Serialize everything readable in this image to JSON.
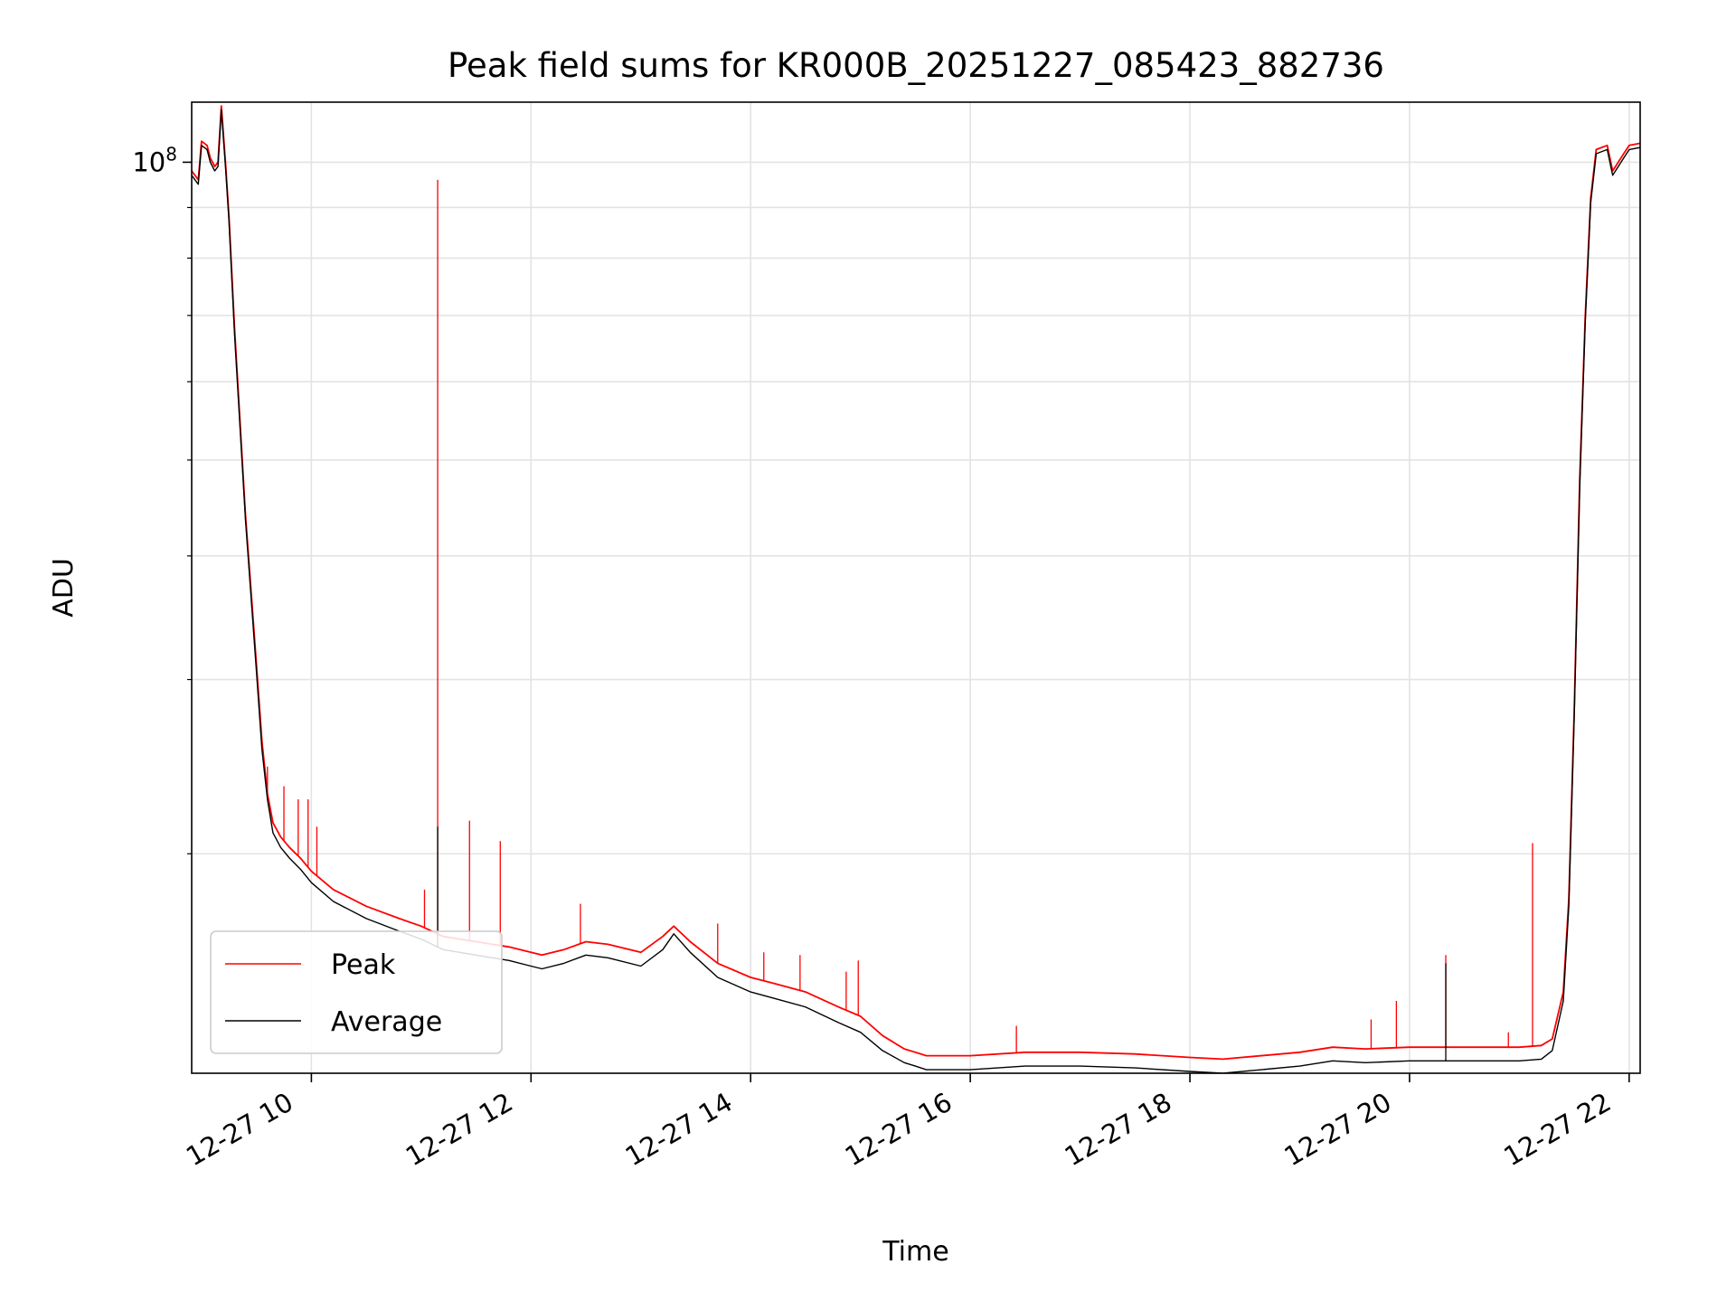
{
  "chart_data": {
    "type": "line",
    "title": "Peak field sums for KR000B_20251227_085423_882736",
    "xlabel": "Time",
    "ylabel": "ADU",
    "yscale": "log",
    "ylim": [
      12000000,
      115000000
    ],
    "xlim": [
      8.91,
      22.1
    ],
    "x_unit": "hours on 2025-12-27",
    "grid": true,
    "legend_position": "lower-left",
    "x_ticks": [
      {
        "value": 10,
        "label": "12-27 10"
      },
      {
        "value": 12,
        "label": "12-27 12"
      },
      {
        "value": 14,
        "label": "12-27 14"
      },
      {
        "value": 16,
        "label": "12-27 16"
      },
      {
        "value": 18,
        "label": "12-27 18"
      },
      {
        "value": 20,
        "label": "12-27 20"
      },
      {
        "value": 22,
        "label": "12-27 22"
      }
    ],
    "y_major_ticks": [
      {
        "value": 100000000,
        "base": "10",
        "exponent": "8"
      }
    ],
    "y_minor_ticks": [
      20000000,
      30000000,
      40000000,
      50000000,
      60000000,
      70000000,
      80000000,
      90000000
    ],
    "series": [
      {
        "name": "Peak",
        "color": "#ff0000",
        "x": [
          8.91,
          8.97,
          9.0,
          9.05,
          9.08,
          9.12,
          9.15,
          9.18,
          9.22,
          9.25,
          9.3,
          9.4,
          9.5,
          9.55,
          9.6,
          9.65,
          9.72,
          9.8,
          9.9,
          10.0,
          10.2,
          10.5,
          10.8,
          11.0,
          11.2,
          11.5,
          11.8,
          12.0,
          12.1,
          12.3,
          12.5,
          12.7,
          13.0,
          13.2,
          13.3,
          13.45,
          13.7,
          14.0,
          14.2,
          14.5,
          14.8,
          15.0,
          15.2,
          15.4,
          15.5,
          15.6,
          16.0,
          16.5,
          17.0,
          17.5,
          18.0,
          18.3,
          19.0,
          19.3,
          19.6,
          20.0,
          20.5,
          21.0,
          21.2,
          21.3,
          21.4,
          21.45,
          21.5,
          21.55,
          21.6,
          21.65,
          21.7,
          21.8,
          21.85,
          21.95,
          22.0,
          22.1
        ],
        "y": [
          98000000,
          96000000,
          105000000,
          104000000,
          101000000,
          99000000,
          100000000,
          114000000,
          99000000,
          88000000,
          68000000,
          44000000,
          31000000,
          26000000,
          23000000,
          21500000,
          20800000,
          20300000,
          19800000,
          19200000,
          18400000,
          17700000,
          17200000,
          16900000,
          16500000,
          16300000,
          16100000,
          15900000,
          15800000,
          16000000,
          16300000,
          16200000,
          15900000,
          16500000,
          16900000,
          16300000,
          15500000,
          15000000,
          14800000,
          14500000,
          14000000,
          13700000,
          13100000,
          12700000,
          12600000,
          12500000,
          12500000,
          12600000,
          12600000,
          12550000,
          12450000,
          12400000,
          12600000,
          12750000,
          12700000,
          12750000,
          12750000,
          12750000,
          12800000,
          13000000,
          14500000,
          18000000,
          28000000,
          48000000,
          70000000,
          92000000,
          103000000,
          104000000,
          98000000,
          102000000,
          104000000,
          104500000
        ],
        "spikes": [
          {
            "x": 9.6,
            "y": 24500000
          },
          {
            "x": 9.75,
            "y": 23400000
          },
          {
            "x": 9.88,
            "y": 22700000
          },
          {
            "x": 9.97,
            "y": 22700000
          },
          {
            "x": 10.05,
            "y": 21300000
          },
          {
            "x": 11.03,
            "y": 18400000
          },
          {
            "x": 11.15,
            "y": 96000000
          },
          {
            "x": 11.44,
            "y": 21600000
          },
          {
            "x": 11.72,
            "y": 20600000
          },
          {
            "x": 12.45,
            "y": 17800000
          },
          {
            "x": 13.7,
            "y": 17000000
          },
          {
            "x": 14.12,
            "y": 15900000
          },
          {
            "x": 14.45,
            "y": 15800000
          },
          {
            "x": 14.87,
            "y": 15200000
          },
          {
            "x": 14.98,
            "y": 15600000
          },
          {
            "x": 16.42,
            "y": 13400000
          },
          {
            "x": 19.65,
            "y": 13600000
          },
          {
            "x": 19.88,
            "y": 14200000
          },
          {
            "x": 20.33,
            "y": 15800000
          },
          {
            "x": 20.9,
            "y": 13200000
          },
          {
            "x": 21.12,
            "y": 20500000
          }
        ]
      },
      {
        "name": "Average",
        "color": "#000000",
        "x": [
          8.91,
          8.97,
          9.0,
          9.05,
          9.08,
          9.12,
          9.15,
          9.18,
          9.22,
          9.25,
          9.3,
          9.4,
          9.5,
          9.55,
          9.6,
          9.65,
          9.72,
          9.8,
          9.9,
          10.0,
          10.2,
          10.5,
          10.8,
          11.0,
          11.2,
          11.5,
          11.8,
          12.0,
          12.1,
          12.3,
          12.5,
          12.7,
          13.0,
          13.2,
          13.3,
          13.45,
          13.7,
          14.0,
          14.2,
          14.5,
          14.8,
          15.0,
          15.2,
          15.4,
          15.5,
          15.6,
          16.0,
          16.5,
          17.0,
          17.5,
          18.0,
          18.3,
          19.0,
          19.3,
          19.6,
          20.0,
          20.5,
          21.0,
          21.2,
          21.3,
          21.4,
          21.45,
          21.5,
          21.55,
          21.6,
          21.65,
          21.7,
          21.8,
          21.85,
          21.95,
          22.0,
          22.1
        ],
        "y": [
          97000000,
          95000000,
          104000000,
          103000000,
          100000000,
          98000000,
          99000000,
          113000000,
          98000000,
          87000000,
          67000000,
          43500000,
          30500000,
          25500000,
          22700000,
          21000000,
          20300000,
          19800000,
          19300000,
          18700000,
          17900000,
          17200000,
          16700000,
          16400000,
          16000000,
          15800000,
          15600000,
          15400000,
          15300000,
          15500000,
          15800000,
          15700000,
          15400000,
          16000000,
          16600000,
          15900000,
          15000000,
          14500000,
          14300000,
          14000000,
          13500000,
          13200000,
          12650000,
          12300000,
          12200000,
          12100000,
          12100000,
          12200000,
          12200000,
          12150000,
          12050000,
          12000000,
          12200000,
          12350000,
          12300000,
          12350000,
          12350000,
          12350000,
          12400000,
          12650000,
          14200000,
          17700000,
          27500000,
          47000000,
          69000000,
          91000000,
          102000000,
          103000000,
          97000000,
          101000000,
          103000000,
          103500000
        ],
        "spikes": [
          {
            "x": 11.15,
            "y": 21300000
          },
          {
            "x": 20.33,
            "y": 15500000
          }
        ]
      }
    ]
  }
}
